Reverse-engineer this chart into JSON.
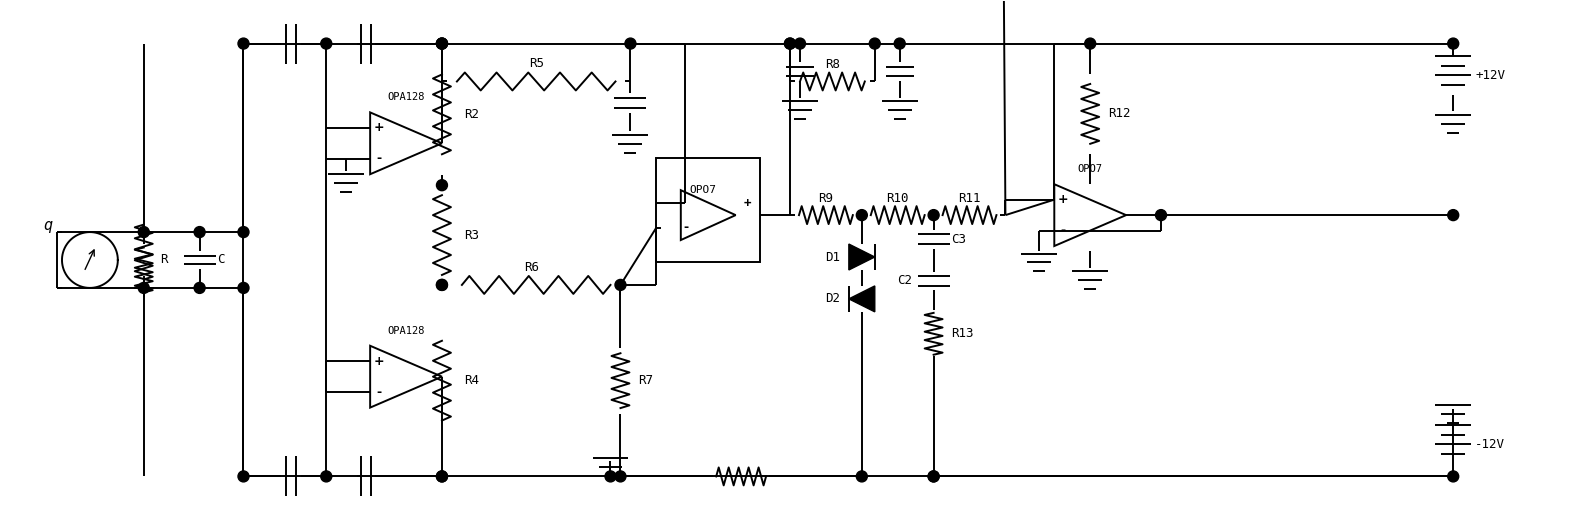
{
  "figsize": [
    15.89,
    5.15
  ],
  "dpi": 100,
  "bg": "#ffffff",
  "lc": "#000000",
  "lw": 1.4,
  "xlim": [
    0,
    15.89
  ],
  "ylim": [
    0,
    5.15
  ]
}
